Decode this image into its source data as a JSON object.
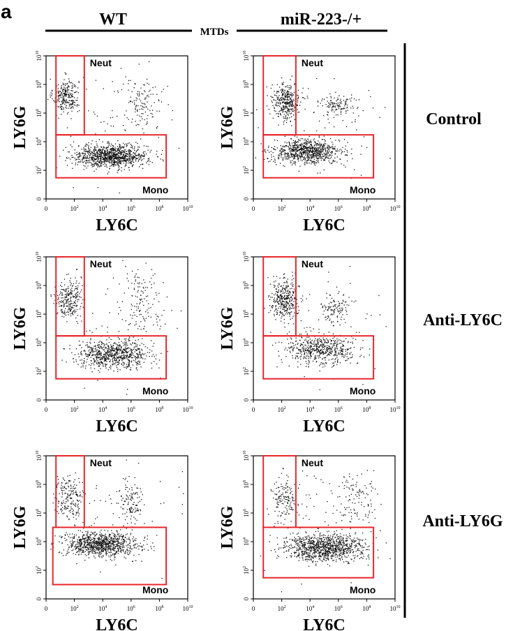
{
  "panel_letter": "a",
  "header": {
    "columns": [
      "WT",
      "miR-223-/+"
    ],
    "group_label": "MTDs"
  },
  "rows": [
    "Control",
    "Anti-LY6C",
    "Anti-LY6G"
  ],
  "colors": {
    "gate": "#e8262b",
    "dot": "#111111",
    "axis": "#000000"
  },
  "chart_data": {
    "type": "scatter",
    "plot_kind": "flow cytometry dot plot",
    "xlabel": "LY6C",
    "ylabel": "LY6G",
    "x_scale": "log",
    "y_scale": "log",
    "xlim": [
      1,
      10000000000
    ],
    "ylim": [
      1,
      10000000000
    ],
    "x_ticks": [
      {
        "value": 1,
        "base": "0",
        "exp": ""
      },
      {
        "value": 100,
        "base": "10",
        "exp": "2"
      },
      {
        "value": 10000,
        "base": "10",
        "exp": "4"
      },
      {
        "value": 1000000,
        "base": "10",
        "exp": "6"
      },
      {
        "value": 100000000,
        "base": "10",
        "exp": "8"
      },
      {
        "value": 10000000000,
        "base": "10",
        "exp": "10"
      }
    ],
    "y_ticks": [
      {
        "value": 1,
        "base": "0",
        "exp": ""
      },
      {
        "value": 100,
        "base": "10",
        "exp": "2"
      },
      {
        "value": 10000,
        "base": "10",
        "exp": "4"
      },
      {
        "value": 1000000,
        "base": "10",
        "exp": "6"
      },
      {
        "value": 100000000,
        "base": "10",
        "exp": "8"
      },
      {
        "value": 10000000000,
        "base": "10",
        "exp": "10"
      }
    ],
    "gate_labels": {
      "neut": "Neut",
      "mono": "Mono"
    },
    "panels": [
      {
        "column": "WT",
        "row": "Control",
        "gates": {
          "neut": {
            "x": [
              5,
              500
            ],
            "y": [
              30000,
              10000000000
            ]
          },
          "mono": {
            "x": [
              5,
              300000000
            ],
            "y": [
              30,
              30000
            ]
          }
        },
        "populations": [
          {
            "x_log": [
              1.4,
              0.45
            ],
            "y_log": [
              7.2,
              0.6
            ],
            "n": 260
          },
          {
            "x_log": [
              4.6,
              1.25
            ],
            "y_log": [
              3.0,
              0.38
            ],
            "n": 1000
          },
          {
            "x_log": [
              6.8,
              0.7
            ],
            "y_log": [
              6.6,
              0.9
            ],
            "n": 110
          },
          {
            "x_log": [
              5.0,
              2.2
            ],
            "y_log": [
              5.0,
              2.0
            ],
            "n": 90
          }
        ]
      },
      {
        "column": "miR-223-/+",
        "row": "Control",
        "gates": {
          "neut": {
            "x": [
              5,
              1000
            ],
            "y": [
              30000,
              10000000000
            ]
          },
          "mono": {
            "x": [
              5,
              300000000
            ],
            "y": [
              30,
              30000
            ]
          }
        },
        "populations": [
          {
            "x_log": [
              2.3,
              0.5
            ],
            "y_log": [
              6.8,
              0.65
            ],
            "n": 340
          },
          {
            "x_log": [
              3.8,
              1.2
            ],
            "y_log": [
              3.3,
              0.42
            ],
            "n": 820
          },
          {
            "x_log": [
              5.8,
              0.6
            ],
            "y_log": [
              6.6,
              0.4
            ],
            "n": 120
          },
          {
            "x_log": [
              5.5,
              2.2
            ],
            "y_log": [
              5.0,
              2.0
            ],
            "n": 70
          }
        ]
      },
      {
        "column": "WT",
        "row": "Anti-LY6C",
        "gates": {
          "neut": {
            "x": [
              5,
              500
            ],
            "y": [
              30000,
              10000000000
            ]
          },
          "mono": {
            "x": [
              5,
              300000000
            ],
            "y": [
              30,
              30000
            ]
          }
        },
        "populations": [
          {
            "x_log": [
              1.6,
              0.45
            ],
            "y_log": [
              7.0,
              0.7
            ],
            "n": 250
          },
          {
            "x_log": [
              4.8,
              1.25
            ],
            "y_log": [
              3.2,
              0.45
            ],
            "n": 720
          },
          {
            "x_log": [
              6.9,
              0.8
            ],
            "y_log": [
              7.0,
              1.1
            ],
            "n": 120
          },
          {
            "x_log": [
              5.0,
              2.2
            ],
            "y_log": [
              5.0,
              2.0
            ],
            "n": 90
          }
        ]
      },
      {
        "column": "miR-223-/+",
        "row": "Anti-LY6C",
        "gates": {
          "neut": {
            "x": [
              5,
              1000
            ],
            "y": [
              30000,
              10000000000
            ]
          },
          "mono": {
            "x": [
              5,
              300000000
            ],
            "y": [
              30,
              30000
            ]
          }
        },
        "populations": [
          {
            "x_log": [
              2.2,
              0.5
            ],
            "y_log": [
              7.0,
              0.7
            ],
            "n": 360
          },
          {
            "x_log": [
              4.8,
              1.2
            ],
            "y_log": [
              3.5,
              0.5
            ],
            "n": 540
          },
          {
            "x_log": [
              5.8,
              0.5
            ],
            "y_log": [
              6.4,
              0.5
            ],
            "n": 110
          },
          {
            "x_log": [
              5.5,
              2.2
            ],
            "y_log": [
              5.0,
              2.0
            ],
            "n": 60
          }
        ]
      },
      {
        "column": "WT",
        "row": "Anti-LY6G",
        "gates": {
          "neut": {
            "x": [
              5,
              500
            ],
            "y": [
              100000,
              10000000000
            ]
          },
          "mono": {
            "x": [
              3,
              300000000
            ],
            "y": [
              10,
              100000
            ]
          }
        },
        "populations": [
          {
            "x_log": [
              1.6,
              0.5
            ],
            "y_log": [
              7.0,
              0.8
            ],
            "n": 200
          },
          {
            "x_log": [
              3.8,
              1.3
            ],
            "y_log": [
              3.8,
              0.42
            ],
            "n": 900
          },
          {
            "x_log": [
              6.0,
              0.4
            ],
            "y_log": [
              6.8,
              0.7
            ],
            "n": 110
          },
          {
            "x_log": [
              5.0,
              2.2
            ],
            "y_log": [
              5.0,
              2.0
            ],
            "n": 80
          }
        ]
      },
      {
        "column": "miR-223-/+",
        "row": "Anti-LY6G",
        "gates": {
          "neut": {
            "x": [
              5,
              1000
            ],
            "y": [
              100000,
              10000000000
            ]
          },
          "mono": {
            "x": [
              5,
              300000000
            ],
            "y": [
              30,
              100000
            ]
          }
        },
        "populations": [
          {
            "x_log": [
              2.2,
              0.5
            ],
            "y_log": [
              7.0,
              0.7
            ],
            "n": 150
          },
          {
            "x_log": [
              5.0,
              1.4
            ],
            "y_log": [
              3.6,
              0.45
            ],
            "n": 1000
          },
          {
            "x_log": [
              7.2,
              0.9
            ],
            "y_log": [
              7.0,
              1.0
            ],
            "n": 110
          },
          {
            "x_log": [
              5.0,
              2.2
            ],
            "y_log": [
              5.0,
              2.0
            ],
            "n": 70
          }
        ]
      }
    ]
  }
}
